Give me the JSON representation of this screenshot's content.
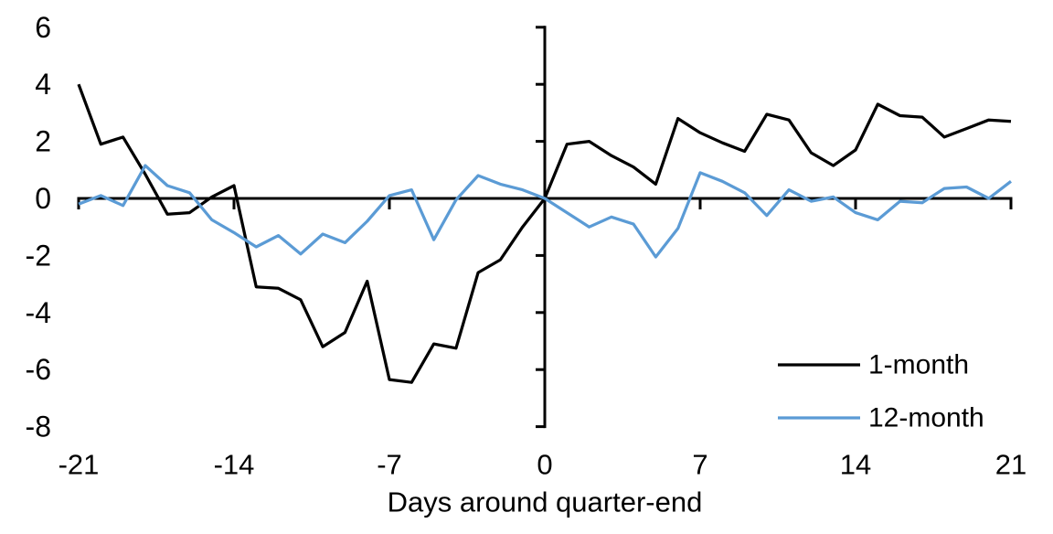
{
  "x_axis_title": "Days around quarter-end",
  "legend": {
    "items": [
      {
        "label": "1-month",
        "color": "#000000"
      },
      {
        "label": "12-month",
        "color": "#5B9BD5"
      }
    ]
  },
  "chart_data": {
    "type": "line",
    "title": "",
    "xlabel": "Days around quarter-end",
    "ylabel": "",
    "xlim": [
      -21,
      21
    ],
    "ylim": [
      -8,
      6
    ],
    "xticks": [
      -21,
      -14,
      -7,
      0,
      7,
      14,
      21
    ],
    "yticks": [
      6,
      4,
      2,
      0,
      -2,
      -4,
      -6,
      -8
    ],
    "grid": false,
    "legend_position": "lower-right",
    "axis_color": "#000000",
    "x": [
      -21,
      -20,
      -19,
      -18,
      -17,
      -16,
      -15,
      -14,
      -13,
      -12,
      -11,
      -10,
      -9,
      -8,
      -7,
      -6,
      -5,
      -4,
      -3,
      -2,
      -1,
      0,
      1,
      2,
      3,
      4,
      5,
      6,
      7,
      8,
      9,
      10,
      11,
      12,
      13,
      14,
      15,
      16,
      17,
      18,
      19,
      20,
      21
    ],
    "series": [
      {
        "name": "1-month",
        "color": "#000000",
        "values": [
          4.0,
          1.9,
          2.15,
          0.85,
          -0.55,
          -0.5,
          0.05,
          0.45,
          -3.1,
          -3.15,
          -3.55,
          -5.2,
          -4.7,
          -2.9,
          -6.35,
          -6.45,
          -5.1,
          -5.25,
          -2.6,
          -2.15,
          -1.0,
          0.0,
          1.9,
          2.0,
          1.5,
          1.1,
          0.5,
          2.8,
          2.3,
          1.95,
          1.65,
          2.95,
          2.75,
          1.6,
          1.15,
          1.7,
          3.3,
          2.9,
          2.85,
          2.15,
          2.45,
          2.75,
          2.7
        ]
      },
      {
        "name": "12-month",
        "color": "#5B9BD5",
        "values": [
          -0.2,
          0.1,
          -0.25,
          1.15,
          0.45,
          0.2,
          -0.75,
          -1.2,
          -1.7,
          -1.3,
          -1.95,
          -1.25,
          -1.55,
          -0.8,
          0.1,
          0.3,
          -1.45,
          -0.05,
          0.8,
          0.5,
          0.3,
          0.0,
          -0.5,
          -1.0,
          -0.65,
          -0.9,
          -2.05,
          -1.05,
          0.9,
          0.6,
          0.2,
          -0.6,
          0.3,
          -0.1,
          0.05,
          -0.5,
          -0.75,
          -0.1,
          -0.15,
          0.35,
          0.4,
          0.0,
          0.6
        ]
      }
    ]
  }
}
